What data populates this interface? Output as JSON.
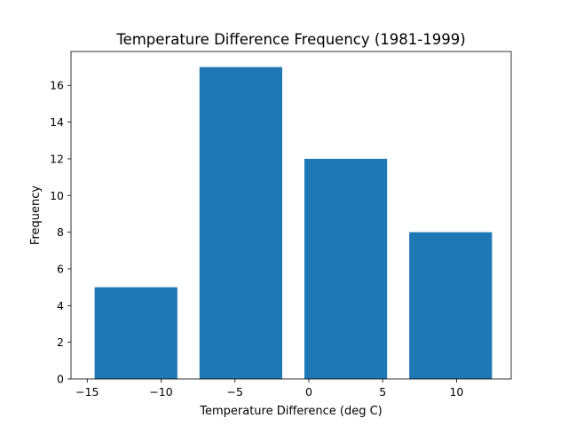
{
  "chart_data": {
    "type": "bar",
    "title": "Temperature Difference Frequency (1981-1999)",
    "xlabel": "Temperature Difference (deg C)",
    "ylabel": "Frequency",
    "bars": [
      {
        "x": -11.7,
        "width": 5.6,
        "value": 5
      },
      {
        "x": -4.6,
        "width": 5.6,
        "value": 17
      },
      {
        "x": 2.5,
        "width": 5.6,
        "value": 12
      },
      {
        "x": 9.6,
        "width": 5.6,
        "value": 8
      }
    ],
    "xlim": [
      -16.1,
      13.7
    ],
    "ylim": [
      0,
      17.85
    ],
    "xticks": [
      -15,
      -10,
      -5,
      0,
      5,
      10
    ],
    "xtick_labels": [
      "−15",
      "−10",
      "−5",
      "0",
      "5",
      "10"
    ],
    "yticks": [
      0,
      2,
      4,
      6,
      8,
      10,
      12,
      14,
      16
    ],
    "ytick_labels": [
      "0",
      "2",
      "4",
      "6",
      "8",
      "10",
      "12",
      "14",
      "16"
    ],
    "grid": false,
    "bar_color": "#1f77b4"
  }
}
